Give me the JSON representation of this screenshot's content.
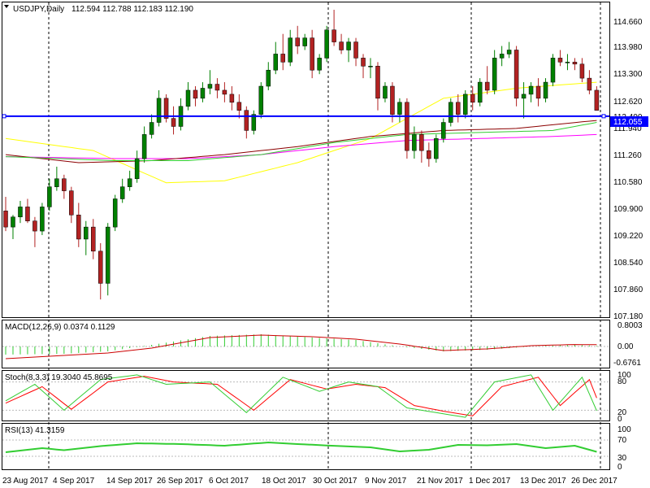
{
  "header": {
    "symbol": "USDJPY,Daily",
    "ohlc": "112.594 112.788 112.183 112.190"
  },
  "colors": {
    "background": "#ffffff",
    "bull_candle": "#008000",
    "bear_candle": "#b22222",
    "wick": "#000000",
    "hline": "#0000ff",
    "ma_yellow": "#ffff00",
    "ma_green": "#32cd32",
    "ma_brown": "#8b0000",
    "ma_magenta": "#ff00ff",
    "macd_hist": "#32cd32",
    "macd_signal": "#cc0000",
    "stoch_main": "#32cd32",
    "stoch_signal": "#ff0000",
    "rsi": "#32cd32"
  },
  "panels": {
    "price": {
      "ticks": [
        "114.660",
        "113.980",
        "113.300",
        "112.620",
        "111.940",
        "111.260",
        "110.580",
        "109.900",
        "109.220",
        "108.540",
        "107.860",
        "107.180"
      ],
      "cut_label": "112.400",
      "tag_label": "112.055"
    },
    "macd": {
      "title": "MACD(12,26,9) 0.0374 0.1129",
      "ticks": [
        "0.8003",
        "0.00",
        "-0.6761"
      ]
    },
    "stoch": {
      "title": "Stoch(8,3,3) 19.3040 45.8695",
      "ticks": [
        "100",
        "80",
        "20",
        "0"
      ]
    },
    "rsi": {
      "title": "RSI(13) 41.3159",
      "ticks": [
        "100",
        "70",
        "30",
        "0"
      ]
    }
  },
  "time_axis": [
    "23 Aug 2017",
    "4 Sep 2017",
    "14 Sep 2017",
    "26 Sep 2017",
    "6 Oct 2017",
    "18 Oct 2017",
    "30 Oct 2017",
    "9 Nov 2017",
    "21 Nov 2017",
    "1 Dec 2017",
    "13 Dec 2017",
    "26 Dec 2017"
  ],
  "chart_data": {
    "type": "candlestick",
    "ylim": [
      107.18,
      114.66
    ],
    "horizontal_line": 112.055,
    "candles": [
      [
        109.7,
        110.05,
        109.2,
        109.3
      ],
      [
        109.3,
        109.6,
        109.0,
        109.55
      ],
      [
        109.55,
        109.95,
        109.4,
        109.8
      ],
      [
        109.8,
        110.0,
        109.4,
        109.45
      ],
      [
        109.45,
        109.55,
        108.8,
        109.2
      ],
      [
        109.2,
        109.9,
        109.1,
        109.8
      ],
      [
        109.8,
        110.5,
        109.7,
        110.3
      ],
      [
        110.3,
        110.8,
        110.2,
        110.5
      ],
      [
        110.5,
        110.6,
        110.0,
        110.2
      ],
      [
        110.2,
        110.3,
        109.4,
        109.6
      ],
      [
        109.6,
        109.9,
        108.8,
        109.0
      ],
      [
        109.0,
        109.45,
        108.6,
        109.3
      ],
      [
        109.3,
        109.5,
        108.5,
        108.7
      ],
      [
        108.7,
        108.9,
        107.5,
        107.9
      ],
      [
        107.9,
        109.4,
        107.6,
        109.3
      ],
      [
        109.3,
        110.1,
        109.2,
        110.0
      ],
      [
        110.0,
        110.5,
        109.9,
        110.3
      ],
      [
        110.3,
        110.7,
        110.2,
        110.5
      ],
      [
        110.5,
        111.2,
        110.4,
        111.0
      ],
      [
        111.0,
        111.8,
        110.9,
        111.6
      ],
      [
        111.6,
        112.1,
        111.5,
        111.9
      ],
      [
        111.9,
        112.7,
        111.8,
        112.5
      ],
      [
        112.5,
        112.6,
        111.9,
        112.0
      ],
      [
        112.0,
        112.3,
        111.6,
        111.8
      ],
      [
        111.8,
        112.5,
        111.7,
        112.3
      ],
      [
        112.3,
        112.9,
        112.2,
        112.7
      ],
      [
        112.7,
        112.8,
        112.3,
        112.5
      ],
      [
        112.5,
        112.9,
        112.4,
        112.75
      ],
      [
        112.75,
        113.2,
        112.6,
        112.85
      ],
      [
        112.85,
        113.0,
        112.5,
        112.7
      ],
      [
        112.7,
        112.9,
        112.4,
        112.6
      ],
      [
        112.6,
        112.8,
        112.2,
        112.4
      ],
      [
        112.4,
        112.6,
        112.0,
        112.2
      ],
      [
        112.2,
        112.3,
        111.5,
        111.7
      ],
      [
        111.7,
        112.2,
        111.6,
        112.1
      ],
      [
        112.1,
        112.9,
        112.0,
        112.8
      ],
      [
        112.8,
        113.4,
        112.7,
        113.2
      ],
      [
        113.2,
        113.9,
        113.1,
        113.6
      ],
      [
        113.6,
        114.1,
        113.2,
        113.4
      ],
      [
        113.4,
        114.2,
        113.3,
        114.0
      ],
      [
        114.0,
        114.3,
        113.6,
        113.8
      ],
      [
        113.8,
        114.1,
        113.7,
        114.0
      ],
      [
        114.0,
        114.2,
        113.0,
        113.2
      ],
      [
        113.2,
        113.6,
        113.1,
        113.5
      ],
      [
        113.5,
        114.3,
        113.4,
        114.2
      ],
      [
        114.2,
        114.7,
        113.8,
        113.9
      ],
      [
        113.9,
        114.1,
        113.6,
        113.7
      ],
      [
        113.7,
        114.0,
        113.4,
        113.9
      ],
      [
        113.9,
        114.0,
        113.3,
        113.5
      ],
      [
        113.5,
        113.6,
        113.0,
        113.3
      ],
      [
        113.3,
        113.5,
        113.0,
        113.3
      ],
      [
        113.3,
        113.4,
        112.2,
        112.5
      ],
      [
        112.5,
        112.9,
        112.4,
        112.8
      ],
      [
        112.8,
        112.9,
        111.9,
        112.1
      ],
      [
        112.1,
        112.5,
        111.9,
        112.4
      ],
      [
        112.4,
        112.5,
        111.0,
        111.2
      ],
      [
        111.2,
        111.8,
        111.0,
        111.6
      ],
      [
        111.6,
        111.7,
        110.9,
        111.2
      ],
      [
        111.2,
        111.4,
        110.8,
        111.0
      ],
      [
        111.0,
        111.6,
        110.9,
        111.5
      ],
      [
        111.5,
        112.0,
        111.4,
        111.9
      ],
      [
        111.9,
        112.5,
        111.8,
        112.4
      ],
      [
        112.4,
        112.6,
        111.9,
        112.1
      ],
      [
        112.1,
        112.7,
        112.0,
        112.6
      ],
      [
        112.6,
        112.8,
        112.2,
        112.4
      ],
      [
        112.4,
        113.0,
        112.3,
        112.9
      ],
      [
        112.9,
        113.3,
        112.6,
        112.7
      ],
      [
        112.7,
        113.7,
        112.6,
        113.5
      ],
      [
        113.5,
        113.8,
        113.3,
        113.6
      ],
      [
        113.6,
        113.9,
        113.5,
        113.7
      ],
      [
        113.7,
        113.8,
        112.3,
        112.5
      ],
      [
        112.5,
        112.9,
        112.0,
        112.6
      ],
      [
        112.6,
        112.9,
        112.4,
        112.8
      ],
      [
        112.8,
        113.0,
        112.3,
        112.5
      ],
      [
        112.5,
        113.0,
        112.4,
        112.9
      ],
      [
        112.9,
        113.6,
        112.8,
        113.5
      ],
      [
        113.5,
        113.7,
        113.3,
        113.4
      ],
      [
        113.4,
        113.6,
        113.2,
        113.4
      ],
      [
        113.4,
        113.5,
        113.2,
        113.35
      ],
      [
        113.35,
        113.5,
        112.9,
        113.0
      ],
      [
        113.0,
        113.2,
        112.6,
        112.7
      ],
      [
        112.7,
        112.8,
        112.2,
        112.2
      ]
    ],
    "indicators": {
      "ma_yellow": [
        [
          0,
          111.5
        ],
        [
          12,
          111.2
        ],
        [
          22,
          110.4
        ],
        [
          30,
          110.45
        ],
        [
          40,
          110.9
        ],
        [
          50,
          111.5
        ],
        [
          60,
          112.5
        ],
        [
          70,
          112.75
        ],
        [
          81,
          112.9
        ]
      ],
      "ma_green": [
        [
          0,
          111.05
        ],
        [
          15,
          110.95
        ],
        [
          25,
          110.95
        ],
        [
          35,
          111.1
        ],
        [
          45,
          111.4
        ],
        [
          55,
          111.6
        ],
        [
          65,
          111.65
        ],
        [
          75,
          111.7
        ],
        [
          81,
          111.9
        ]
      ],
      "ma_brown": [
        [
          0,
          111.1
        ],
        [
          10,
          110.9
        ],
        [
          20,
          110.95
        ],
        [
          30,
          111.1
        ],
        [
          40,
          111.3
        ],
        [
          50,
          111.55
        ],
        [
          60,
          111.7
        ],
        [
          70,
          111.75
        ],
        [
          81,
          111.95
        ]
      ],
      "ma_magenta": [
        [
          0,
          111.05
        ],
        [
          15,
          111.0
        ],
        [
          25,
          111.0
        ],
        [
          35,
          111.1
        ],
        [
          45,
          111.3
        ],
        [
          55,
          111.45
        ],
        [
          65,
          111.5
        ],
        [
          75,
          111.55
        ],
        [
          81,
          111.6
        ]
      ],
      "macd_hist": [
        [
          0,
          -0.5
        ],
        [
          8,
          -0.45
        ],
        [
          14,
          -0.3
        ],
        [
          20,
          0.1
        ],
        [
          28,
          0.65
        ],
        [
          35,
          0.75
        ],
        [
          42,
          0.55
        ],
        [
          48,
          0.4
        ],
        [
          54,
          0.0
        ],
        [
          60,
          -0.3
        ],
        [
          66,
          -0.2
        ],
        [
          72,
          0.0
        ],
        [
          78,
          0.1
        ],
        [
          81,
          0.04
        ]
      ],
      "macd_signal": [
        [
          0,
          -0.75
        ],
        [
          8,
          -0.55
        ],
        [
          14,
          -0.4
        ],
        [
          20,
          -0.1
        ],
        [
          28,
          0.55
        ],
        [
          35,
          0.7
        ],
        [
          42,
          0.6
        ],
        [
          48,
          0.45
        ],
        [
          54,
          0.15
        ],
        [
          60,
          -0.25
        ],
        [
          66,
          -0.15
        ],
        [
          72,
          0.05
        ],
        [
          78,
          0.12
        ],
        [
          81,
          0.11
        ]
      ],
      "stoch_main": [
        [
          0,
          40
        ],
        [
          4,
          75
        ],
        [
          8,
          20
        ],
        [
          13,
          85
        ],
        [
          18,
          95
        ],
        [
          22,
          75
        ],
        [
          28,
          80
        ],
        [
          33,
          15
        ],
        [
          38,
          90
        ],
        [
          43,
          60
        ],
        [
          47,
          80
        ],
        [
          51,
          70
        ],
        [
          55,
          25
        ],
        [
          59,
          15
        ],
        [
          63,
          5
        ],
        [
          67,
          80
        ],
        [
          72,
          95
        ],
        [
          75,
          20
        ],
        [
          79,
          90
        ],
        [
          81,
          19
        ]
      ],
      "stoch_signal": [
        [
          0,
          35
        ],
        [
          5,
          70
        ],
        [
          9,
          22
        ],
        [
          14,
          80
        ],
        [
          19,
          92
        ],
        [
          23,
          80
        ],
        [
          29,
          75
        ],
        [
          34,
          20
        ],
        [
          39,
          85
        ],
        [
          44,
          65
        ],
        [
          48,
          75
        ],
        [
          52,
          68
        ],
        [
          56,
          30
        ],
        [
          60,
          18
        ],
        [
          64,
          8
        ],
        [
          68,
          70
        ],
        [
          73,
          90
        ],
        [
          76,
          30
        ],
        [
          80,
          85
        ],
        [
          81,
          46
        ]
      ],
      "rsi": [
        [
          0,
          40
        ],
        [
          5,
          50
        ],
        [
          8,
          45
        ],
        [
          13,
          55
        ],
        [
          18,
          62
        ],
        [
          24,
          60
        ],
        [
          30,
          56
        ],
        [
          36,
          64
        ],
        [
          40,
          60
        ],
        [
          46,
          55
        ],
        [
          50,
          52
        ],
        [
          54,
          42
        ],
        [
          58,
          46
        ],
        [
          62,
          58
        ],
        [
          66,
          57
        ],
        [
          70,
          60
        ],
        [
          74,
          50
        ],
        [
          78,
          56
        ],
        [
          81,
          41
        ]
      ]
    }
  }
}
